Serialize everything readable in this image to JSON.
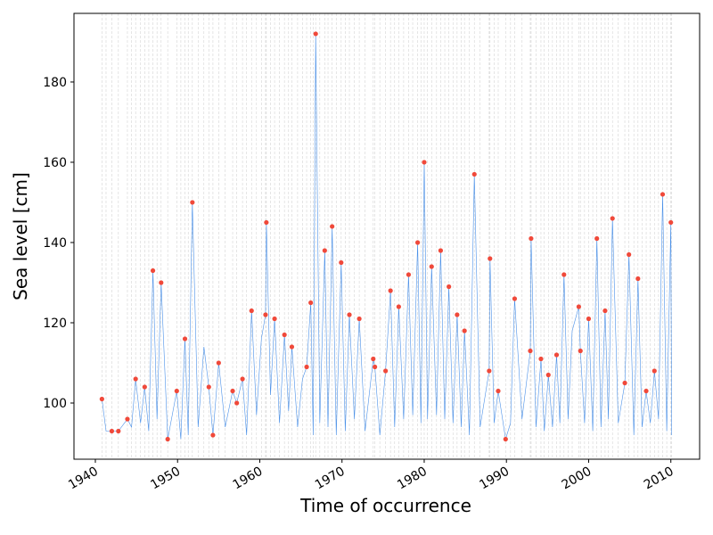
{
  "chart_data": {
    "type": "line-scatter",
    "x_label": "Time of occurrence",
    "y_label": "Sea level [cm]",
    "xlim": [
      1937.4,
      2013.5
    ],
    "ylim": [
      86.0,
      197.1
    ],
    "xticks": [
      1940,
      1950,
      1960,
      1970,
      1980,
      1990,
      2000,
      2010
    ],
    "yticks": [
      100,
      120,
      140,
      160,
      180
    ],
    "grid": "x",
    "line": {
      "color": "#4a90e8",
      "x": [
        1940.8,
        1941.3,
        1942.0,
        1942.8,
        1943.9,
        1944.4,
        1944.9,
        1945.5,
        1946.0,
        1946.5,
        1947.0,
        1947.5,
        1948.0,
        1948.8,
        1949.9,
        1950.4,
        1950.9,
        1951.3,
        1951.8,
        1952.5,
        1953.2,
        1953.8,
        1954.3,
        1955.0,
        1955.8,
        1956.7,
        1957.2,
        1957.9,
        1958.4,
        1959.0,
        1959.6,
        1960.2,
        1960.7,
        1960.8,
        1961.3,
        1961.8,
        1962.4,
        1963.0,
        1963.5,
        1963.9,
        1964.6,
        1965.2,
        1965.7,
        1966.2,
        1966.5,
        1966.8,
        1967.3,
        1967.9,
        1968.3,
        1968.8,
        1969.3,
        1969.9,
        1970.4,
        1970.9,
        1971.5,
        1972.1,
        1972.8,
        1973.8,
        1974.0,
        1974.6,
        1975.3,
        1975.9,
        1976.4,
        1976.9,
        1977.5,
        1978.1,
        1978.6,
        1979.2,
        1979.6,
        1980.0,
        1980.4,
        1980.9,
        1981.5,
        1982.0,
        1982.5,
        1983.0,
        1983.5,
        1984.0,
        1984.5,
        1984.9,
        1985.5,
        1986.1,
        1986.8,
        1987.9,
        1988.0,
        1988.5,
        1989.0,
        1989.9,
        1990.5,
        1991.0,
        1991.9,
        1992.9,
        1993.0,
        1993.6,
        1994.2,
        1994.6,
        1995.1,
        1995.6,
        1996.1,
        1996.5,
        1997.0,
        1997.5,
        1998.0,
        1998.8,
        1999.0,
        1999.5,
        2000.0,
        2000.5,
        2001.0,
        2001.5,
        2002.0,
        2002.4,
        2002.9,
        2003.6,
        2004.4,
        2004.9,
        2005.5,
        2006.0,
        2006.5,
        2007.0,
        2007.5,
        2008.0,
        2008.5,
        2009.0,
        2009.5,
        2010.0,
        2010.1
      ],
      "values": [
        101,
        93,
        93,
        93,
        96,
        94,
        106,
        95,
        104,
        93,
        133,
        96,
        130,
        91,
        103,
        91,
        116,
        92,
        150,
        94,
        114,
        104,
        92,
        110,
        94,
        103,
        100,
        106,
        92,
        123,
        97,
        116,
        122,
        145,
        102,
        121,
        95,
        117,
        98,
        114,
        94,
        106,
        109,
        125,
        92,
        192,
        95,
        138,
        94,
        144,
        92,
        135,
        93,
        122,
        96,
        121,
        93,
        111,
        109,
        92,
        108,
        128,
        94,
        124,
        96,
        132,
        97,
        140,
        95,
        160,
        96,
        134,
        97,
        138,
        96,
        129,
        95,
        122,
        94,
        118,
        92,
        157,
        94,
        108,
        136,
        95,
        103,
        91,
        95,
        126,
        96,
        113,
        141,
        94,
        111,
        93,
        107,
        94,
        112,
        95,
        132,
        96,
        118,
        124,
        113,
        95,
        121,
        93,
        141,
        94,
        123,
        96,
        146,
        95,
        105,
        137,
        92,
        131,
        94,
        103,
        95,
        108,
        96,
        152,
        93,
        145,
        92
      ]
    },
    "maxima": {
      "color": "#f0493a",
      "x": [
        1940.8,
        1942.0,
        1942.8,
        1943.9,
        1944.9,
        1946.0,
        1947.0,
        1948.0,
        1948.8,
        1949.9,
        1950.9,
        1951.8,
        1953.8,
        1954.3,
        1955.0,
        1956.7,
        1957.2,
        1957.9,
        1959.0,
        1960.7,
        1960.8,
        1961.8,
        1963.0,
        1963.9,
        1965.7,
        1966.2,
        1966.8,
        1967.9,
        1968.8,
        1969.9,
        1970.9,
        1972.1,
        1973.8,
        1974.0,
        1975.3,
        1975.9,
        1976.9,
        1978.1,
        1979.2,
        1980.0,
        1980.9,
        1982.0,
        1983.0,
        1984.0,
        1984.9,
        1986.1,
        1987.9,
        1988.0,
        1989.0,
        1989.9,
        1991.0,
        1992.9,
        1993.0,
        1994.2,
        1995.1,
        1996.1,
        1997.0,
        1998.8,
        1999.0,
        2000.0,
        2001.0,
        2002.0,
        2002.9,
        2004.4,
        2004.9,
        2006.0,
        2007.0,
        2008.0,
        2009.0,
        2010.0
      ],
      "values": [
        101,
        93,
        93,
        96,
        106,
        104,
        133,
        130,
        91,
        103,
        116,
        150,
        104,
        92,
        110,
        103,
        100,
        106,
        123,
        122,
        145,
        121,
        117,
        114,
        109,
        125,
        192,
        138,
        144,
        135,
        122,
        121,
        111,
        109,
        108,
        128,
        124,
        132,
        140,
        160,
        134,
        138,
        129,
        122,
        118,
        157,
        108,
        136,
        103,
        91,
        126,
        113,
        141,
        111,
        107,
        112,
        132,
        124,
        113,
        121,
        141,
        123,
        146,
        105,
        137,
        131,
        103,
        108,
        152,
        145
      ]
    }
  }
}
